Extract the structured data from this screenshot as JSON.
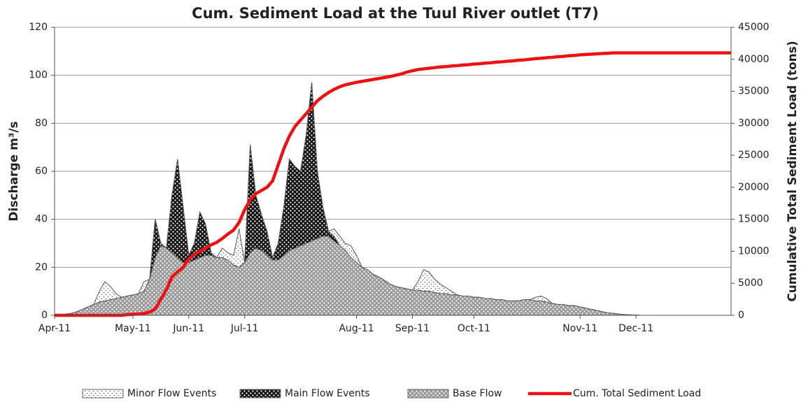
{
  "chart_data": {
    "type": "area-line",
    "title": "Cum. Sediment Load at the Tuul River outlet (T7)",
    "ylabel": "Discharge m³/s",
    "y2label": "Cumulative Total Sediment Load (tons)",
    "ylim": [
      0,
      120
    ],
    "yticks": [
      0,
      20,
      40,
      60,
      80,
      100,
      120
    ],
    "y2lim": [
      0,
      45000
    ],
    "y2ticks": [
      0,
      5000,
      10000,
      15000,
      20000,
      25000,
      30000,
      35000,
      40000,
      45000
    ],
    "grid": true,
    "legend": "bottom",
    "categories": [
      "Apr-11",
      null,
      null,
      null,
      null,
      null,
      null,
      null,
      null,
      null,
      null,
      null,
      null,
      null,
      "May-11",
      null,
      null,
      null,
      null,
      null,
      null,
      null,
      null,
      null,
      "Jun-11",
      null,
      null,
      null,
      null,
      null,
      null,
      null,
      null,
      null,
      "Jul-11",
      null,
      null,
      null,
      null,
      null,
      null,
      null,
      null,
      null,
      null,
      null,
      null,
      null,
      null,
      null,
      null,
      null,
      null,
      null,
      "Aug-11",
      null,
      null,
      null,
      null,
      null,
      null,
      null,
      null,
      null,
      "Sep-11",
      null,
      null,
      null,
      null,
      null,
      null,
      null,
      null,
      null,
      null,
      "Oct-11",
      null,
      null,
      null,
      null,
      null,
      null,
      null,
      null,
      null,
      null,
      null,
      null,
      null,
      null,
      null,
      null,
      null,
      null,
      "Nov-11",
      null,
      null,
      null,
      null,
      null,
      null,
      null,
      null,
      null,
      "Dec-11",
      null,
      null,
      null,
      null,
      null,
      null,
      null,
      null,
      null,
      null,
      null,
      null,
      null,
      null,
      null,
      null,
      null
    ],
    "series": [
      {
        "name": "Minor Flow Events",
        "color": "#ffffff",
        "kind": "area",
        "values": [
          0,
          0,
          0.5,
          0.8,
          1.5,
          2.5,
          3.5,
          4.5,
          10,
          14,
          12,
          9,
          7.5,
          8,
          8.5,
          9,
          14,
          15,
          40,
          30,
          28,
          50,
          65,
          45,
          25,
          30,
          43,
          38,
          26,
          24,
          28,
          26,
          25,
          36,
          22,
          71,
          50,
          42,
          35,
          24,
          30,
          45,
          65,
          62,
          60,
          75,
          97,
          60,
          45,
          35,
          36,
          33,
          30,
          29,
          25,
          20,
          19,
          17,
          16,
          14.5,
          13,
          12,
          11.5,
          11,
          10.5,
          14,
          19,
          18,
          15,
          13,
          11.5,
          10,
          8.5,
          8,
          8,
          7.5,
          7.5,
          7,
          7,
          6.5,
          6.5,
          6,
          6,
          6,
          6.5,
          6.5,
          7.5,
          8,
          7,
          5,
          4.5,
          4.5,
          4,
          4,
          3.5,
          3,
          2.5,
          2,
          1.5,
          1,
          0.8,
          0.5,
          0.3,
          0.2,
          0.1,
          0,
          0,
          0,
          0,
          0,
          0,
          0,
          0,
          0,
          0,
          0,
          0,
          0,
          0,
          0,
          0,
          0
        ]
      },
      {
        "name": "Main Flow Events",
        "color": "#111111",
        "kind": "area",
        "values": [
          0,
          0,
          0.5,
          0.8,
          1.5,
          2.5,
          3.5,
          4.5,
          5.5,
          6,
          6.5,
          7,
          7.5,
          8,
          8.5,
          9,
          10,
          15,
          40,
          30,
          28,
          50,
          65,
          45,
          25,
          30,
          43,
          38,
          26,
          24,
          24,
          23,
          21,
          20,
          22,
          71,
          50,
          42,
          35,
          24,
          30,
          45,
          65,
          62,
          60,
          75,
          97,
          60,
          45,
          35,
          33,
          29,
          27,
          24,
          22,
          20,
          19,
          17,
          16,
          14.5,
          13,
          12,
          11.5,
          11,
          10.5,
          10.5,
          10,
          10,
          9.5,
          9,
          9,
          8.5,
          8.5,
          8,
          8,
          7.5,
          7.5,
          7,
          7,
          6.5,
          6.5,
          6,
          6,
          6,
          6.5,
          6.5,
          6,
          6,
          5.5,
          5,
          4.5,
          4.5,
          4,
          4,
          3.5,
          3,
          2.5,
          2,
          1.5,
          1,
          0.8,
          0.5,
          0.3,
          0.2,
          0.1,
          0,
          0,
          0,
          0,
          0,
          0,
          0,
          0,
          0,
          0,
          0,
          0,
          0,
          0,
          0,
          0,
          0
        ]
      },
      {
        "name": "Base Flow",
        "color": "#9a9a9a",
        "kind": "area",
        "values": [
          0,
          0,
          0.5,
          0.8,
          1.5,
          2.5,
          3.5,
          4.5,
          5.5,
          6,
          6.5,
          7,
          7.5,
          8,
          8.5,
          9,
          10,
          15,
          24,
          29,
          28,
          26,
          24,
          22,
          22,
          23,
          24,
          25,
          25,
          24,
          24,
          23,
          21,
          20,
          22,
          26,
          28,
          27,
          25,
          23,
          23,
          25,
          27,
          28,
          29,
          30,
          31,
          32,
          33,
          33,
          31,
          29,
          27,
          24,
          22,
          20,
          19,
          17,
          16,
          14.5,
          13,
          12,
          11.5,
          11,
          10.5,
          10.5,
          10,
          10,
          9.5,
          9,
          9,
          8.5,
          8.5,
          8,
          8,
          7.5,
          7.5,
          7,
          7,
          6.5,
          6.5,
          6,
          6,
          6,
          6.5,
          6.5,
          6,
          6,
          5.5,
          5,
          4.5,
          4.5,
          4,
          4,
          3.5,
          3,
          2.5,
          2,
          1.5,
          1,
          0.8,
          0.5,
          0.3,
          0.2,
          0.1,
          0,
          0,
          0,
          0,
          0,
          0,
          0,
          0,
          0,
          0,
          0,
          0,
          0,
          0,
          0,
          0,
          0
        ]
      },
      {
        "name": "Cum. Total Sediment Load",
        "color": "#ee1111",
        "kind": "line",
        "axis": "y2",
        "values": [
          0,
          0,
          0,
          0,
          0,
          0,
          0,
          0,
          0,
          0,
          0,
          0,
          0,
          100,
          150,
          200,
          300,
          500,
          1000,
          2500,
          4000,
          6000,
          6800,
          7500,
          8800,
          9500,
          10000,
          10500,
          11000,
          11400,
          12000,
          12700,
          13300,
          14500,
          16500,
          18000,
          19000,
          19500,
          20000,
          21000,
          23500,
          26000,
          28000,
          29500,
          30500,
          31500,
          32500,
          33500,
          34200,
          34800,
          35300,
          35700,
          36000,
          36200,
          36400,
          36550,
          36700,
          36850,
          37000,
          37150,
          37300,
          37500,
          37700,
          38000,
          38200,
          38400,
          38500,
          38600,
          38700,
          38800,
          38850,
          38950,
          39000,
          39100,
          39150,
          39250,
          39300,
          39400,
          39450,
          39550,
          39600,
          39700,
          39750,
          39850,
          39900,
          40000,
          40100,
          40150,
          40250,
          40300,
          40400,
          40450,
          40550,
          40600,
          40700,
          40750,
          40800,
          40850,
          40900,
          40950,
          41000,
          41000,
          41000,
          41000,
          41000,
          41000,
          41000,
          41000,
          41000,
          41000,
          41000,
          41000,
          41000,
          41000,
          41000,
          41000,
          41000,
          41000,
          41000,
          41000,
          41000,
          41000
        ]
      }
    ]
  }
}
